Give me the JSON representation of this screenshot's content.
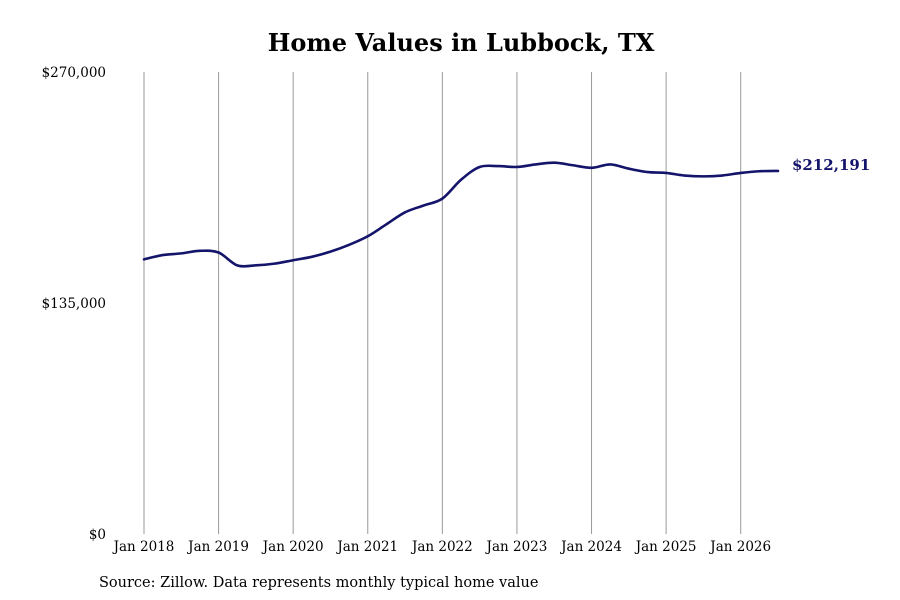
{
  "chart_data": {
    "type": "line",
    "title": "Home Values in Lubbock, TX",
    "xlabel": "",
    "ylabel": "",
    "ylim": [
      0,
      270000
    ],
    "yticks": [
      {
        "value": 0,
        "label": "$0"
      },
      {
        "value": 135000,
        "label": "$135,000"
      },
      {
        "value": 270000,
        "label": "$270,000"
      }
    ],
    "xlim": [
      "2018-01",
      "2026-07"
    ],
    "xticks": [
      {
        "x": "2018-01",
        "label": "Jan 2018"
      },
      {
        "x": "2019-01",
        "label": "Jan 2019"
      },
      {
        "x": "2020-01",
        "label": "Jan 2020"
      },
      {
        "x": "2021-01",
        "label": "Jan 2021"
      },
      {
        "x": "2022-01",
        "label": "Jan 2022"
      },
      {
        "x": "2023-01",
        "label": "Jan 2023"
      },
      {
        "x": "2024-01",
        "label": "Jan 2024"
      },
      {
        "x": "2025-01",
        "label": "Jan 2025"
      },
      {
        "x": "2026-01",
        "label": "Jan 2026"
      }
    ],
    "grid": "vertical",
    "series": [
      {
        "color": "#14146b",
        "points": [
          {
            "x": "2018-01",
            "y": 160500
          },
          {
            "x": "2018-04",
            "y": 163000
          },
          {
            "x": "2018-07",
            "y": 164000
          },
          {
            "x": "2018-10",
            "y": 165500
          },
          {
            "x": "2019-01",
            "y": 164500
          },
          {
            "x": "2019-04",
            "y": 157000
          },
          {
            "x": "2019-07",
            "y": 157000
          },
          {
            "x": "2019-10",
            "y": 158000
          },
          {
            "x": "2020-01",
            "y": 160000
          },
          {
            "x": "2020-04",
            "y": 162000
          },
          {
            "x": "2020-07",
            "y": 165000
          },
          {
            "x": "2020-10",
            "y": 169000
          },
          {
            "x": "2021-01",
            "y": 174000
          },
          {
            "x": "2021-04",
            "y": 181000
          },
          {
            "x": "2021-07",
            "y": 188000
          },
          {
            "x": "2021-10",
            "y": 192000
          },
          {
            "x": "2022-01",
            "y": 196000
          },
          {
            "x": "2022-04",
            "y": 207000
          },
          {
            "x": "2022-07",
            "y": 214500
          },
          {
            "x": "2022-10",
            "y": 215000
          },
          {
            "x": "2023-01",
            "y": 214500
          },
          {
            "x": "2023-04",
            "y": 216000
          },
          {
            "x": "2023-07",
            "y": 217000
          },
          {
            "x": "2023-10",
            "y": 215500
          },
          {
            "x": "2024-01",
            "y": 214000
          },
          {
            "x": "2024-04",
            "y": 216000
          },
          {
            "x": "2024-07",
            "y": 213500
          },
          {
            "x": "2024-10",
            "y": 211500
          },
          {
            "x": "2025-01",
            "y": 211000
          },
          {
            "x": "2025-04",
            "y": 209500
          },
          {
            "x": "2025-07",
            "y": 209000
          },
          {
            "x": "2025-10",
            "y": 209500
          },
          {
            "x": "2026-01",
            "y": 211000
          },
          {
            "x": "2026-04",
            "y": 212000
          },
          {
            "x": "2026-07",
            "y": 212191
          }
        ]
      }
    ],
    "end_label": "$212,191"
  },
  "source_note": "Source: Zillow. Data represents monthly typical home value",
  "colors": {
    "line": "#14146b",
    "gridline": "#999999",
    "text": "#000000"
  }
}
